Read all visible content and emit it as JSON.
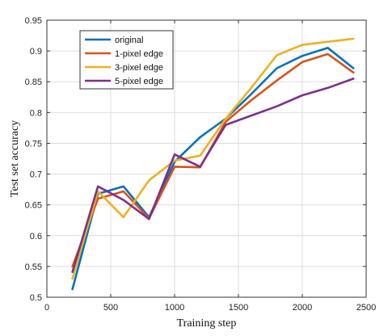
{
  "chart_data": {
    "type": "line",
    "xlabel": "Training step",
    "ylabel": "Test set accuracy",
    "xlim": [
      0,
      2500
    ],
    "ylim": [
      0.5,
      0.95
    ],
    "xticks": [
      0,
      500,
      1000,
      1500,
      2000,
      2500
    ],
    "yticks": [
      0.5,
      0.55,
      0.6,
      0.65,
      0.7,
      0.75,
      0.8,
      0.85,
      0.9,
      0.95
    ],
    "xtick_labels": [
      "0",
      "500",
      "1000",
      "1500",
      "2000",
      "2500"
    ],
    "ytick_labels": [
      "0.5",
      "0.55",
      "0.6",
      "0.65",
      "0.7",
      "0.75",
      "0.8",
      "0.85",
      "0.9",
      "0.95"
    ],
    "grid": true,
    "legend_position": "top-left",
    "series": [
      {
        "name": "original",
        "color": "#0072BD",
        "x": [
          200,
          400,
          600,
          800,
          1000,
          1200,
          1400,
          1600,
          1800,
          2000,
          2200,
          2400
        ],
        "values": [
          0.513,
          0.668,
          0.68,
          0.63,
          0.72,
          0.76,
          0.79,
          0.83,
          0.872,
          0.892,
          0.905,
          0.872
        ]
      },
      {
        "name": "1-pixel edge",
        "color": "#D95319",
        "x": [
          200,
          400,
          600,
          800,
          1000,
          1200,
          1400,
          1600,
          1800,
          2000,
          2200,
          2400
        ],
        "values": [
          0.55,
          0.66,
          0.672,
          0.628,
          0.712,
          0.711,
          0.785,
          0.82,
          0.852,
          0.882,
          0.895,
          0.865
        ]
      },
      {
        "name": "3-pixel edge",
        "color": "#EDB120",
        "x": [
          200,
          400,
          600,
          800,
          1000,
          1200,
          1400,
          1600,
          1800,
          2000,
          2200,
          2400
        ],
        "values": [
          0.53,
          0.672,
          0.63,
          0.69,
          0.722,
          0.73,
          0.79,
          0.84,
          0.893,
          0.91,
          0.915,
          0.92
        ]
      },
      {
        "name": "5-pixel edge",
        "color": "#7E2F8E",
        "x": [
          200,
          400,
          600,
          800,
          1000,
          1200,
          1400,
          1600,
          1800,
          2000,
          2200,
          2400
        ],
        "values": [
          0.541,
          0.68,
          0.658,
          0.627,
          0.732,
          0.712,
          0.78,
          0.795,
          0.81,
          0.828,
          0.84,
          0.855
        ]
      }
    ]
  }
}
